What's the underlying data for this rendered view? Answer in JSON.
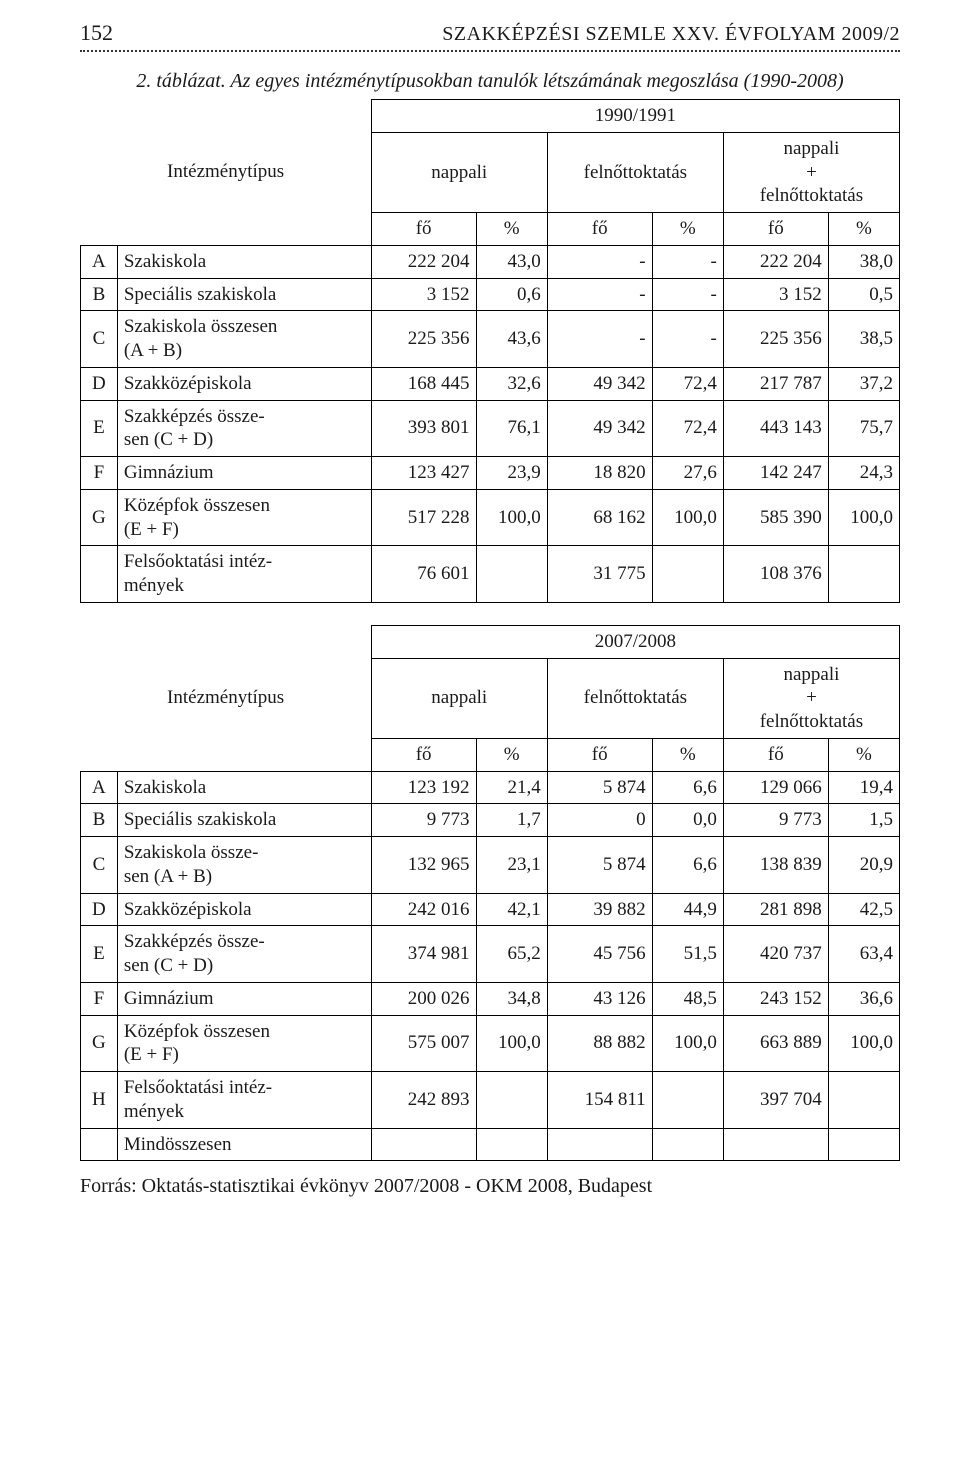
{
  "colors": {
    "text": "#1a1a1a",
    "background": "#ffffff",
    "border": "#000000",
    "dotted_rule": "#333333"
  },
  "typography": {
    "body_family": "Times New Roman",
    "body_size_pt": 15,
    "caption_italic": true
  },
  "header": {
    "page_number": "152",
    "journal_title": "SZAKKÉPZÉSI SZEMLE XXV. ÉVFOLYAM 2009/2"
  },
  "caption": "2. táblázat. Az egyes intézménytípusokban tanulók létszámának megoszlása (1990-2008)",
  "head_labels": {
    "intezmenytipus": "Intézménytípus",
    "nappali": "nappali",
    "felnott": "felnőttoktatás",
    "nappali_plus_felnott": "nappali\n+\nfelnőttoktatás",
    "fo": "fő",
    "pct": "%"
  },
  "table1": {
    "year_label": "1990/1991",
    "rows": [
      {
        "letter": "A",
        "name": "Szakiskola",
        "fo1": "222 204",
        "p1": "43,0",
        "fo2": "-",
        "p2": "-",
        "fo3": "222 204",
        "p3": "38,0"
      },
      {
        "letter": "B",
        "name": "Speciális szakiskola",
        "fo1": "3 152",
        "p1": "0,6",
        "fo2": "-",
        "p2": "-",
        "fo3": "3 152",
        "p3": "0,5"
      },
      {
        "letter": "C",
        "name": "Szakiskola összesen\n(A + B)",
        "fo1": "225 356",
        "p1": "43,6",
        "fo2": "-",
        "p2": "-",
        "fo3": "225 356",
        "p3": "38,5"
      },
      {
        "letter": "D",
        "name": "Szakközépiskola",
        "fo1": "168 445",
        "p1": "32,6",
        "fo2": "49 342",
        "p2": "72,4",
        "fo3": "217 787",
        "p3": "37,2"
      },
      {
        "letter": "E",
        "name": "Szakképzés össze-\nsen (C + D)",
        "fo1": "393 801",
        "p1": "76,1",
        "fo2": "49 342",
        "p2": "72,4",
        "fo3": "443 143",
        "p3": "75,7"
      },
      {
        "letter": "F",
        "name": "Gimnázium",
        "fo1": "123 427",
        "p1": "23,9",
        "fo2": "18 820",
        "p2": "27,6",
        "fo3": "142 247",
        "p3": "24,3"
      },
      {
        "letter": "G",
        "name": "Középfok összesen\n(E + F)",
        "fo1": "517 228",
        "p1": "100,0",
        "fo2": "68 162",
        "p2": "100,0",
        "fo3": "585 390",
        "p3": "100,0"
      },
      {
        "letter": "",
        "name": "Felsőoktatási intéz-\nmények",
        "fo1": "76 601",
        "p1": "",
        "fo2": "31 775",
        "p2": "",
        "fo3": "108 376",
        "p3": ""
      }
    ]
  },
  "table2": {
    "year_label": "2007/2008",
    "rows": [
      {
        "letter": "A",
        "name": "Szakiskola",
        "fo1": "123 192",
        "p1": "21,4",
        "fo2": "5 874",
        "p2": "6,6",
        "fo3": "129 066",
        "p3": "19,4"
      },
      {
        "letter": "B",
        "name": "Speciális szakiskola",
        "fo1": "9 773",
        "p1": "1,7",
        "fo2": "0",
        "p2": "0,0",
        "fo3": "9 773",
        "p3": "1,5"
      },
      {
        "letter": "C",
        "name": "Szakiskola össze-\nsen (A + B)",
        "fo1": "132 965",
        "p1": "23,1",
        "fo2": "5 874",
        "p2": "6,6",
        "fo3": "138 839",
        "p3": "20,9"
      },
      {
        "letter": "D",
        "name": "Szakközépiskola",
        "fo1": "242 016",
        "p1": "42,1",
        "fo2": "39 882",
        "p2": "44,9",
        "fo3": "281 898",
        "p3": "42,5"
      },
      {
        "letter": "E",
        "name": "Szakképzés össze-\nsen (C + D)",
        "fo1": "374 981",
        "p1": "65,2",
        "fo2": "45 756",
        "p2": "51,5",
        "fo3": "420 737",
        "p3": "63,4"
      },
      {
        "letter": "F",
        "name": "Gimnázium",
        "fo1": "200 026",
        "p1": "34,8",
        "fo2": "43 126",
        "p2": "48,5",
        "fo3": "243 152",
        "p3": "36,6"
      },
      {
        "letter": "G",
        "name": "Középfok összesen\n(E + F)",
        "fo1": "575 007",
        "p1": "100,0",
        "fo2": "88 882",
        "p2": "100,0",
        "fo3": "663 889",
        "p3": "100,0"
      },
      {
        "letter": "H",
        "name": "Felsőoktatási intéz-\nmények",
        "fo1": "242 893",
        "p1": "",
        "fo2": "154 811",
        "p2": "",
        "fo3": "397 704",
        "p3": ""
      },
      {
        "letter": "",
        "name": "Mindösszesen",
        "fo1": "",
        "p1": "",
        "fo2": "",
        "p2": "",
        "fo3": "",
        "p3": ""
      }
    ]
  },
  "source": "Forrás: Oktatás-statisztikai évkönyv 2007/2008 - OKM 2008, Budapest"
}
